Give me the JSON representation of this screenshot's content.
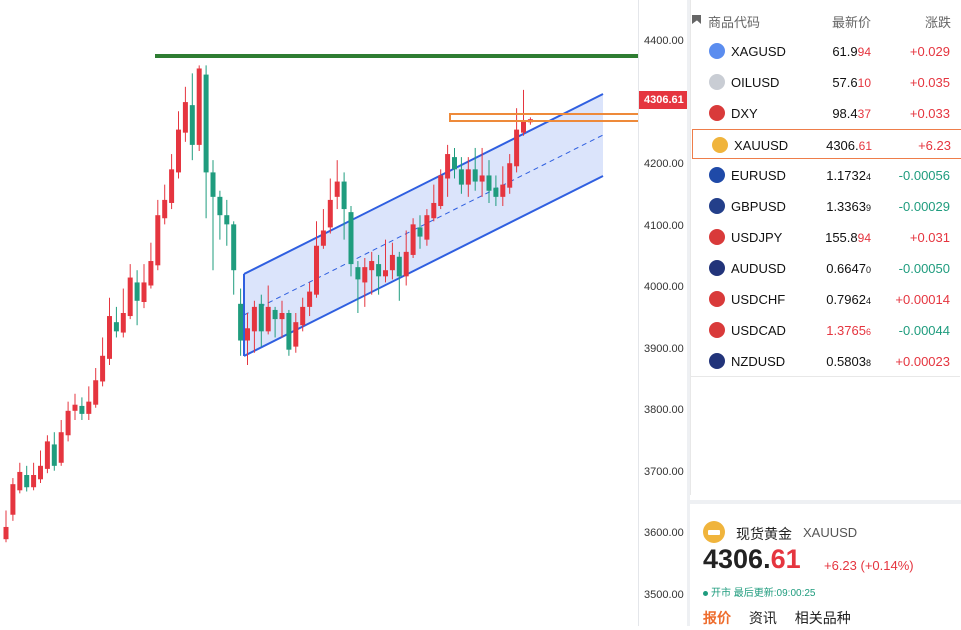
{
  "axis": {
    "ticks": [
      "4400.00",
      "4300.00",
      "4200.00",
      "4100.00",
      "4000.00",
      "3900.00",
      "3800.00",
      "3700.00",
      "3600.00",
      "3500.00"
    ],
    "current_price_tag": "4306.61"
  },
  "watchlist": {
    "headers": {
      "symbol": "商品代码",
      "price": "最新价",
      "change": "涨跌"
    },
    "rows": [
      {
        "symbol": "XAGUSD",
        "price_main": "61.9",
        "price_tail": "94",
        "price_small": "",
        "change": "+0.029",
        "dir": "pos",
        "icon": "silver-icon",
        "selected": false
      },
      {
        "symbol": "OILUSD",
        "price_main": "57.6",
        "price_tail": "10",
        "price_small": "",
        "change": "+0.035",
        "dir": "pos",
        "icon": "oil-icon",
        "selected": false
      },
      {
        "symbol": "DXY",
        "price_main": "98.4",
        "price_tail": "37",
        "price_small": "",
        "change": "+0.033",
        "dir": "pos",
        "icon": "us-flag-icon",
        "selected": false
      },
      {
        "symbol": "XAUUSD",
        "price_main": "4306.",
        "price_tail": "61",
        "price_small": "",
        "change": "+6.23",
        "dir": "pos",
        "icon": "gold-icon",
        "selected": true
      },
      {
        "symbol": "EURUSD",
        "price_main": "1.1732",
        "price_tail": "",
        "price_small": "4",
        "change": "-0.00056",
        "dir": "neg",
        "icon": "eu-flag-icon",
        "selected": false
      },
      {
        "symbol": "GBPUSD",
        "price_main": "1.3363",
        "price_tail": "",
        "price_small": "9",
        "change": "-0.00029",
        "dir": "neg",
        "icon": "uk-flag-icon",
        "selected": false
      },
      {
        "symbol": "USDJPY",
        "price_main": "155.8",
        "price_tail": "94",
        "price_small": "",
        "change": "+0.031",
        "dir": "pos",
        "icon": "us-jp-flag-icon",
        "selected": false
      },
      {
        "symbol": "AUDUSD",
        "price_main": "0.6647",
        "price_tail": "",
        "price_small": "0",
        "change": "-0.00050",
        "dir": "neg",
        "icon": "au-flag-icon",
        "selected": false
      },
      {
        "symbol": "USDCHF",
        "price_main": "0.7962",
        "price_tail": "",
        "price_small": "4",
        "change": "+0.00014",
        "dir": "pos",
        "icon": "us-ch-flag-icon",
        "selected": false
      },
      {
        "symbol": "USDCAD",
        "price_main": "1.3765",
        "price_tail": "",
        "price_small": "6",
        "change": "-0.00044",
        "dir": "neg",
        "icon": "us-ca-flag-icon",
        "selected": false,
        "price_red": true
      },
      {
        "symbol": "NZDUSD",
        "price_main": "0.5803",
        "price_tail": "",
        "price_small": "8",
        "change": "+0.00023",
        "dir": "pos",
        "icon": "nz-flag-icon",
        "selected": false
      }
    ]
  },
  "detail": {
    "name": "现货黄金",
    "symbol": "XAUUSD",
    "price_main": "4306.",
    "price_tail": "61",
    "change": "+6.23 (+0.14%)",
    "status": "开市 最后更新:09:00:25",
    "tabs": [
      "报价",
      "资讯",
      "相关品种"
    ]
  },
  "colors": {
    "up": "#e5353f",
    "down": "#1f9c7e",
    "channel": "#2f5fe0",
    "resistance": "#2e7d32",
    "zone": "#ee8a3a"
  },
  "chart_data": {
    "type": "candlestick",
    "ylim": [
      3478,
      4502
    ],
    "candles": [
      [
        3620,
        3640,
        3615,
        3667
      ],
      [
        3660,
        3710,
        3650,
        3720
      ],
      [
        3700,
        3730,
        3695,
        3745
      ],
      [
        3725,
        3705,
        3698,
        3740
      ],
      [
        3705,
        3725,
        3700,
        3745
      ],
      [
        3718,
        3740,
        3712,
        3765
      ],
      [
        3735,
        3780,
        3728,
        3790
      ],
      [
        3775,
        3740,
        3732,
        3795
      ],
      [
        3745,
        3795,
        3740,
        3815
      ],
      [
        3790,
        3830,
        3780,
        3845
      ],
      [
        3830,
        3840,
        3815,
        3858
      ],
      [
        3838,
        3825,
        3815,
        3852
      ],
      [
        3825,
        3845,
        3815,
        3870
      ],
      [
        3840,
        3880,
        3835,
        3900
      ],
      [
        3878,
        3920,
        3870,
        3950
      ],
      [
        3915,
        3985,
        3905,
        4015
      ],
      [
        3975,
        3960,
        3950,
        4000
      ],
      [
        3958,
        3990,
        3950,
        4030
      ],
      [
        3985,
        4048,
        3980,
        4070
      ],
      [
        4040,
        4010,
        3970,
        4060
      ],
      [
        4008,
        4040,
        3998,
        4070
      ],
      [
        4035,
        4075,
        4030,
        4105
      ],
      [
        4068,
        4150,
        4060,
        4175
      ],
      [
        4145,
        4175,
        4135,
        4200
      ],
      [
        4170,
        4225,
        4160,
        4250
      ],
      [
        4220,
        4290,
        4210,
        4320
      ],
      [
        4285,
        4335,
        4270,
        4360
      ],
      [
        4330,
        4265,
        4240,
        4382
      ],
      [
        4265,
        4390,
        4255,
        4395
      ],
      [
        4380,
        4220,
        4145,
        4395
      ],
      [
        4220,
        4180,
        4060,
        4240
      ],
      [
        4180,
        4150,
        4110,
        4190
      ],
      [
        4150,
        4135,
        4100,
        4175
      ],
      [
        4135,
        4060,
        4020,
        4140
      ],
      [
        4005,
        3945,
        3920,
        4030
      ],
      [
        3945,
        3965,
        3905,
        3990
      ],
      [
        3960,
        4000,
        3925,
        4010
      ],
      [
        4005,
        3960,
        3935,
        4020
      ],
      [
        3960,
        4000,
        3955,
        4035
      ],
      [
        3995,
        3980,
        3950,
        4000
      ],
      [
        3980,
        3990,
        3950,
        4010
      ],
      [
        3990,
        3930,
        3920,
        3995
      ],
      [
        3935,
        3975,
        3925,
        3990
      ],
      [
        3970,
        4000,
        3960,
        4015
      ],
      [
        4000,
        4025,
        3985,
        4040
      ],
      [
        4020,
        4100,
        4015,
        4140
      ],
      [
        4100,
        4125,
        4095,
        4160
      ],
      [
        4130,
        4175,
        4120,
        4210
      ],
      [
        4180,
        4205,
        4160,
        4240
      ],
      [
        4205,
        4160,
        4110,
        4220
      ],
      [
        4155,
        4070,
        4050,
        4165
      ],
      [
        4065,
        4045,
        3990,
        4075
      ],
      [
        4040,
        4065,
        4000,
        4080
      ],
      [
        4060,
        4075,
        4020,
        4090
      ],
      [
        4070,
        4050,
        4020,
        4085
      ],
      [
        4050,
        4060,
        4040,
        4110
      ],
      [
        4060,
        4085,
        4045,
        4105
      ],
      [
        4082,
        4050,
        4010,
        4090
      ],
      [
        4050,
        4090,
        4035,
        4125
      ],
      [
        4085,
        4135,
        4080,
        4145
      ],
      [
        4130,
        4115,
        4095,
        4150
      ],
      [
        4110,
        4150,
        4100,
        4160
      ],
      [
        4145,
        4170,
        4140,
        4200
      ],
      [
        4165,
        4215,
        4160,
        4225
      ],
      [
        4210,
        4250,
        4180,
        4265
      ],
      [
        4245,
        4225,
        4210,
        4260
      ],
      [
        4225,
        4200,
        4185,
        4245
      ],
      [
        4200,
        4225,
        4180,
        4245
      ],
      [
        4225,
        4205,
        4190,
        4260
      ],
      [
        4205,
        4215,
        4180,
        4260
      ],
      [
        4215,
        4190,
        4170,
        4240
      ],
      [
        4195,
        4180,
        4165,
        4215
      ],
      [
        4180,
        4200,
        4165,
        4230
      ],
      [
        4195,
        4235,
        4185,
        4250
      ],
      [
        4230,
        4290,
        4220,
        4325
      ],
      [
        4285,
        4305,
        4280,
        4355
      ],
      [
        4302,
        4307,
        4298,
        4310
      ]
    ]
  }
}
